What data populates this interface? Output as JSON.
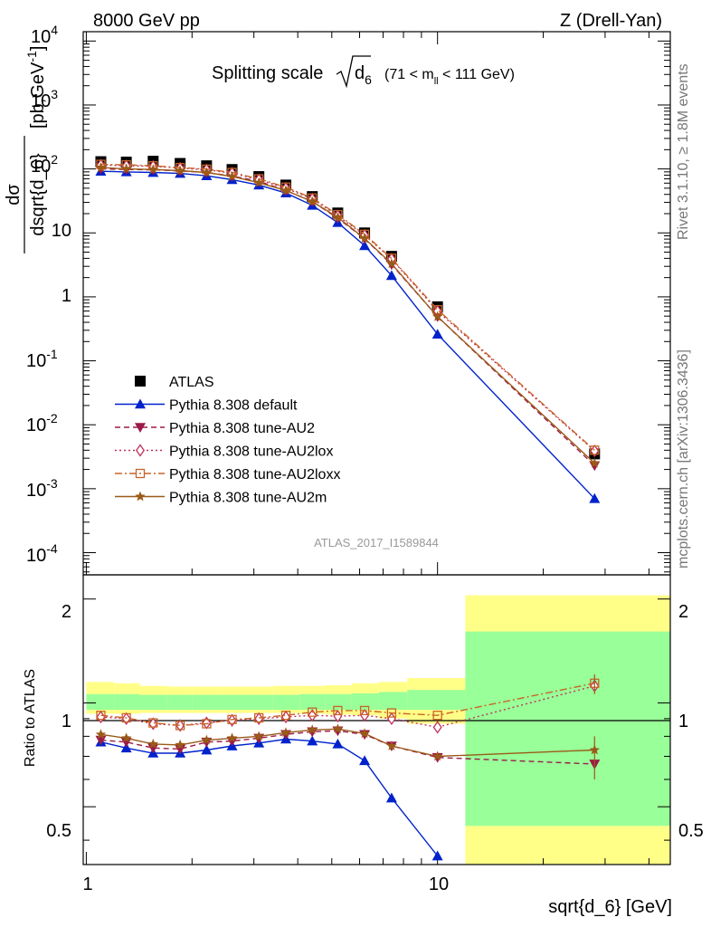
{
  "header": {
    "left": "8000 GeV pp",
    "right": "Z (Drell-Yan)"
  },
  "title": {
    "main": "Splitting scale",
    "var": "d",
    "var_sub": "6",
    "range_pre": "(71 < m",
    "range_sub": "ll",
    "range_post": " < 111 GeV)"
  },
  "side": {
    "rivet": "Rivet 3.1.10, ≥ 1.8M events",
    "mcplots": "mcplots.cern.ch [arXiv:1306.3436]"
  },
  "watermark": "ATLAS_2017_I1589844",
  "axes": {
    "xlabel": "sqrt{d_6} [GeV]",
    "ylabel_num": "dσ",
    "ylabel_den": "dsqrt{d_6}",
    "ylabel_unit": "[pb,GeV",
    "ylabel_unit_sup": "-1",
    "ylabel_unit_end": "]",
    "ratio_ylabel": "Ratio to ATLAS",
    "x_ticks": [
      "1",
      "10"
    ],
    "y_ticks_plain": [
      "1",
      "10"
    ],
    "y_ticks_pow": [
      "4",
      "3",
      "2",
      "-1",
      "-2",
      "-3",
      "-4"
    ],
    "ratio_ticks": [
      "0.5",
      "1",
      "2"
    ]
  },
  "chart_data": {
    "type": "scatter",
    "x_scale": "log",
    "xlim": [
      0.98,
      46
    ],
    "main_panel": {
      "y_scale": "log",
      "ylim": [
        4.5e-05,
        14000
      ],
      "x": [
        1.1,
        1.3,
        1.55,
        1.85,
        2.2,
        2.6,
        3.1,
        3.7,
        4.4,
        5.2,
        6.2,
        7.4,
        10.0,
        28.0
      ],
      "series": [
        {
          "name": "ATLAS",
          "color": "#000000",
          "marker": "square-filled",
          "values": [
            130,
            128,
            132,
            122,
            112,
            98,
            76,
            56,
            37,
            20.5,
            10,
            4.3,
            0.7,
            0.0035
          ]
        },
        {
          "name": "Pythia 8.308 default",
          "color": "#0022cc",
          "marker": "triangle-up-filled",
          "line": "solid",
          "values": [
            92,
            90,
            88,
            85,
            78,
            68,
            56,
            42,
            27,
            14.5,
            6.3,
            2.15,
            0.26,
            0.0007
          ]
        },
        {
          "name": "Pythia 8.308 tune-AU2",
          "color": "#9c1a4a",
          "marker": "triangle-down-filled",
          "line": "dashed",
          "values": [
            100,
            98,
            97,
            93,
            88,
            77,
            64,
            46,
            31,
            17,
            8.1,
            3.2,
            0.49,
            0.0023
          ]
        },
        {
          "name": "Pythia 8.308 tune-AU2lox",
          "color": "#c0305a",
          "marker": "diamond-open",
          "line": "dotted",
          "values": [
            115,
            112,
            110,
            103,
            97,
            86,
            68,
            50,
            34,
            18.5,
            9.2,
            3.9,
            0.6,
            0.0039
          ]
        },
        {
          "name": "Pythia 8.308 tune-AU2loxx",
          "color": "#c86428",
          "marker": "square-open",
          "line": "dashdot",
          "values": [
            118,
            116,
            112,
            105,
            99,
            88,
            70,
            52,
            35,
            19.3,
            9.5,
            4.0,
            0.63,
            0.004
          ]
        },
        {
          "name": "Pythia 8.308 tune-AU2m",
          "color": "#9a5a18",
          "marker": "star",
          "line": "solid",
          "values": [
            105,
            100,
            98,
            94,
            88,
            76,
            61,
            46,
            31,
            17.5,
            8.2,
            3.3,
            0.49,
            0.0025
          ]
        }
      ]
    },
    "ratio_panel": {
      "y_scale": "log",
      "ylim": [
        0.34,
        2.35
      ],
      "x": [
        1.1,
        1.3,
        1.55,
        1.85,
        2.2,
        2.6,
        3.1,
        3.7,
        4.4,
        5.2,
        6.2,
        7.4,
        10.0,
        28.0
      ],
      "series": [
        {
          "name": "Pythia 8.308 default",
          "values": [
            0.77,
            0.74,
            0.715,
            0.715,
            0.73,
            0.75,
            0.765,
            0.785,
            0.775,
            0.76,
            0.68,
            0.53,
            0.36,
            null
          ]
        },
        {
          "name": "Pythia 8.308 tune-AU2",
          "values": [
            0.78,
            0.77,
            0.74,
            0.735,
            0.77,
            0.775,
            0.79,
            0.81,
            0.825,
            0.83,
            0.81,
            0.75,
            0.695,
            0.665
          ]
        },
        {
          "name": "Pythia 8.308 tune-AU2lox",
          "values": [
            0.91,
            0.9,
            0.87,
            0.86,
            0.875,
            0.89,
            0.9,
            0.91,
            0.92,
            0.915,
            0.92,
            0.9,
            0.85,
            1.12
          ]
        },
        {
          "name": "Pythia 8.308 tune-AU2loxx",
          "values": [
            0.92,
            0.905,
            0.875,
            0.86,
            0.87,
            0.895,
            0.905,
            0.92,
            0.94,
            0.95,
            0.95,
            0.935,
            0.92,
            1.14
          ]
        },
        {
          "name": "Pythia 8.308 tune-AU2m",
          "values": [
            0.81,
            0.79,
            0.76,
            0.755,
            0.78,
            0.79,
            0.8,
            0.82,
            0.835,
            0.84,
            0.815,
            0.75,
            0.7,
            0.73
          ]
        }
      ],
      "bands": {
        "bin_edges": [
          1.0,
          1.2,
          1.42,
          1.7,
          2.0,
          2.4,
          2.85,
          3.4,
          4.05,
          4.8,
          5.7,
          6.8,
          8.2,
          12.0,
          46
        ],
        "inner_lo": [
          0.955,
          0.955,
          0.955,
          0.955,
          0.955,
          0.955,
          0.955,
          0.955,
          0.955,
          0.955,
          0.955,
          0.955,
          0.955,
          0.44
        ],
        "inner_hi": [
          1.06,
          1.06,
          1.055,
          1.055,
          1.055,
          1.055,
          1.055,
          1.055,
          1.06,
          1.06,
          1.065,
          1.075,
          1.09,
          1.61
        ],
        "outer_lo": [
          0.93,
          0.93,
          0.935,
          0.935,
          0.935,
          0.935,
          0.935,
          0.935,
          0.93,
          0.925,
          0.92,
          0.9,
          0.87,
          0.34
        ],
        "outer_hi": [
          1.15,
          1.14,
          1.12,
          1.115,
          1.115,
          1.115,
          1.115,
          1.12,
          1.12,
          1.125,
          1.14,
          1.15,
          1.18,
          2.05
        ]
      },
      "inner_color": "#99ff99",
      "outer_color": "#ffff88"
    }
  }
}
